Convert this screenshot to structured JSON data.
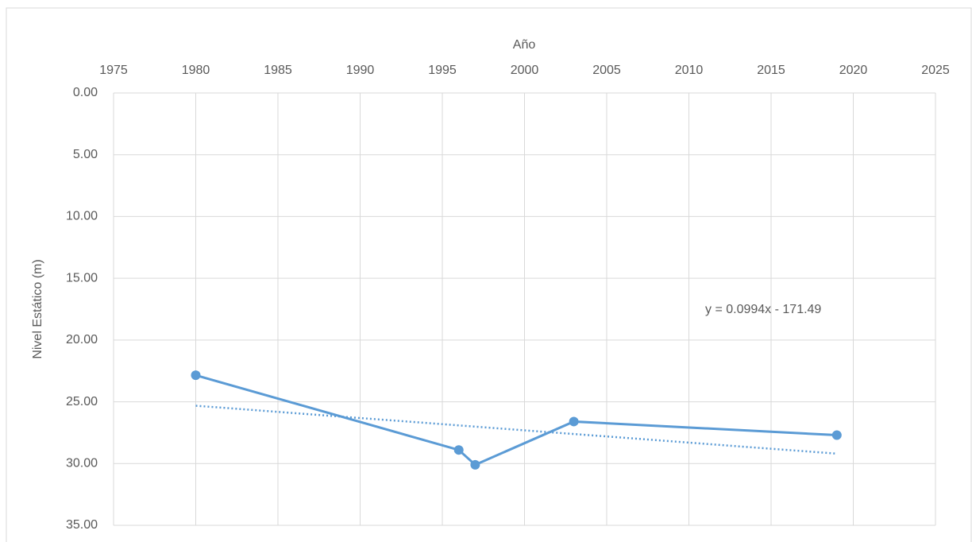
{
  "chart_data": {
    "type": "line",
    "x_label": "Año",
    "y_label": "Nivel Estático (m)",
    "x": [
      1980,
      1996,
      1997,
      2003,
      2019
    ],
    "series": [
      {
        "color": "#5b9bd5",
        "values": [
          22.85,
          28.9,
          30.1,
          26.6,
          27.7
        ]
      }
    ],
    "trendline": {
      "label": "y = 0.0994x - 171.49",
      "color": "#5b9bd5",
      "x": [
        1980,
        2019
      ],
      "values": [
        25.32,
        29.2
      ]
    },
    "xlim": [
      1975,
      2025
    ],
    "xticks": [
      1975,
      1980,
      1985,
      1990,
      1995,
      2000,
      2005,
      2010,
      2015,
      2020,
      2025
    ],
    "ylim": [
      0,
      35
    ],
    "yticks": [
      {
        "value": 0,
        "label": "0.00"
      },
      {
        "value": 5,
        "label": "5.00"
      },
      {
        "value": 10,
        "label": "10.00"
      },
      {
        "value": 15,
        "label": "15.00"
      },
      {
        "value": 20,
        "label": "20.00"
      },
      {
        "value": 25,
        "label": "25.00"
      },
      {
        "value": 30,
        "label": "30.00"
      },
      {
        "value": 35,
        "label": "35.00"
      }
    ],
    "y_inverted": true,
    "x_axis_position": "top",
    "grid": true
  }
}
